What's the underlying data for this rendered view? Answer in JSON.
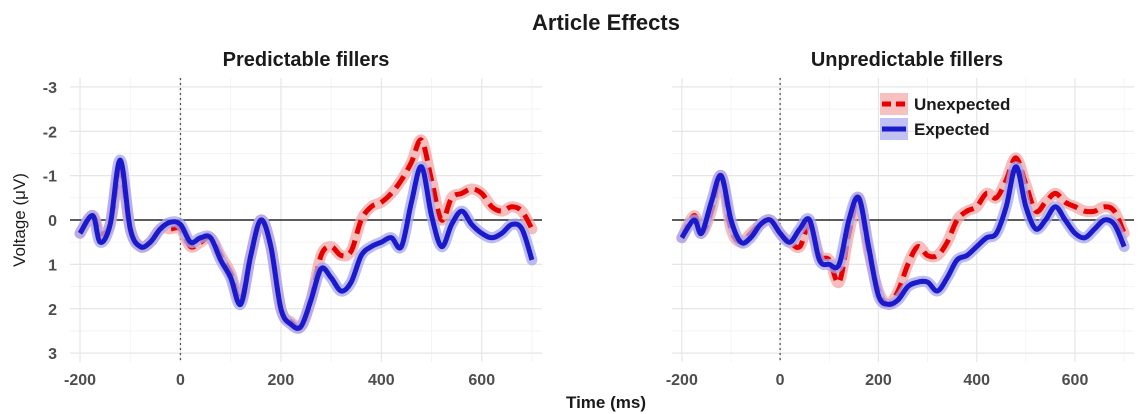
{
  "chart_data": {
    "type": "line",
    "title": "Article Effects",
    "xlabel": "Time (ms)",
    "ylabel": "Voltage (μV)",
    "x_ticks": [
      -200,
      0,
      200,
      400,
      600
    ],
    "y_ticks": [
      -3,
      -2,
      -1,
      0,
      1,
      2,
      3
    ],
    "y_reversed": true,
    "xlim": [
      -220,
      720
    ],
    "ylim": [
      -3.2,
      3.2
    ],
    "grid": true,
    "legend": {
      "position": "top-right",
      "panel": 1
    },
    "x": [
      -200,
      -175,
      -160,
      -140,
      -120,
      -100,
      -80,
      -60,
      -40,
      -20,
      0,
      20,
      40,
      60,
      80,
      100,
      120,
      140,
      160,
      180,
      200,
      220,
      240,
      260,
      280,
      300,
      320,
      340,
      360,
      380,
      400,
      420,
      440,
      460,
      480,
      500,
      520,
      540,
      560,
      580,
      600,
      620,
      640,
      660,
      680,
      700
    ],
    "panels": [
      {
        "title": "Predictable fillers",
        "series": [
          {
            "name": "Unexpected",
            "color": "#e60000",
            "dash": true,
            "values": [
              0.3,
              -0.1,
              0.3,
              0.1,
              -1.1,
              0.2,
              0.6,
              0.5,
              0.2,
              0.2,
              0.2,
              0.6,
              0.5,
              0.4,
              0.8,
              1.2,
              1.8,
              0.8,
              0.0,
              0.6,
              2.0,
              2.3,
              2.4,
              1.8,
              0.8,
              0.6,
              0.8,
              0.7,
              0.0,
              -0.3,
              -0.4,
              -0.6,
              -0.9,
              -1.3,
              -1.8,
              -0.9,
              0.0,
              -0.5,
              -0.6,
              -0.7,
              -0.6,
              -0.3,
              -0.2,
              -0.3,
              -0.2,
              0.2
            ]
          },
          {
            "name": "Expected",
            "color": "#1a1acc",
            "dash": false,
            "values": [
              0.3,
              -0.1,
              0.5,
              0.1,
              -1.35,
              0.2,
              0.6,
              0.5,
              0.2,
              0.05,
              0.1,
              0.5,
              0.4,
              0.4,
              0.9,
              1.3,
              1.9,
              0.8,
              0.0,
              0.6,
              2.0,
              2.35,
              2.4,
              1.8,
              1.1,
              1.3,
              1.6,
              1.4,
              0.8,
              0.6,
              0.5,
              0.4,
              0.6,
              -0.4,
              -1.2,
              -0.1,
              0.6,
              0.1,
              -0.2,
              0.1,
              0.3,
              0.4,
              0.3,
              0.1,
              0.2,
              0.9
            ]
          }
        ]
      },
      {
        "title": "Unpredictable fillers",
        "series": [
          {
            "name": "Unexpected",
            "color": "#e60000",
            "dash": true,
            "values": [
              0.4,
              -0.1,
              0.3,
              -0.2,
              -1.0,
              0.2,
              0.5,
              0.3,
              0.1,
              0.0,
              0.3,
              0.5,
              0.6,
              0.1,
              0.8,
              0.9,
              1.4,
              0.3,
              -0.5,
              0.7,
              1.6,
              1.9,
              1.6,
              1.0,
              0.6,
              0.8,
              0.8,
              0.5,
              0.0,
              -0.2,
              -0.3,
              -0.6,
              -0.5,
              -0.9,
              -1.4,
              -0.8,
              -0.2,
              -0.4,
              -0.6,
              -0.4,
              -0.3,
              -0.2,
              -0.2,
              -0.3,
              -0.2,
              0.3
            ]
          },
          {
            "name": "Expected",
            "color": "#1a1acc",
            "dash": false,
            "values": [
              0.4,
              0.0,
              0.3,
              -0.4,
              -1.0,
              0.0,
              0.5,
              0.4,
              0.1,
              0.0,
              0.3,
              0.5,
              0.2,
              0.0,
              0.9,
              1.0,
              1.0,
              0.0,
              -0.5,
              0.6,
              1.7,
              1.9,
              1.8,
              1.5,
              1.4,
              1.4,
              1.6,
              1.3,
              0.9,
              0.8,
              0.6,
              0.4,
              0.3,
              -0.3,
              -1.2,
              -0.3,
              0.2,
              0.0,
              -0.3,
              0.0,
              0.3,
              0.4,
              0.2,
              0.0,
              0.1,
              0.6
            ]
          }
        ]
      }
    ]
  }
}
